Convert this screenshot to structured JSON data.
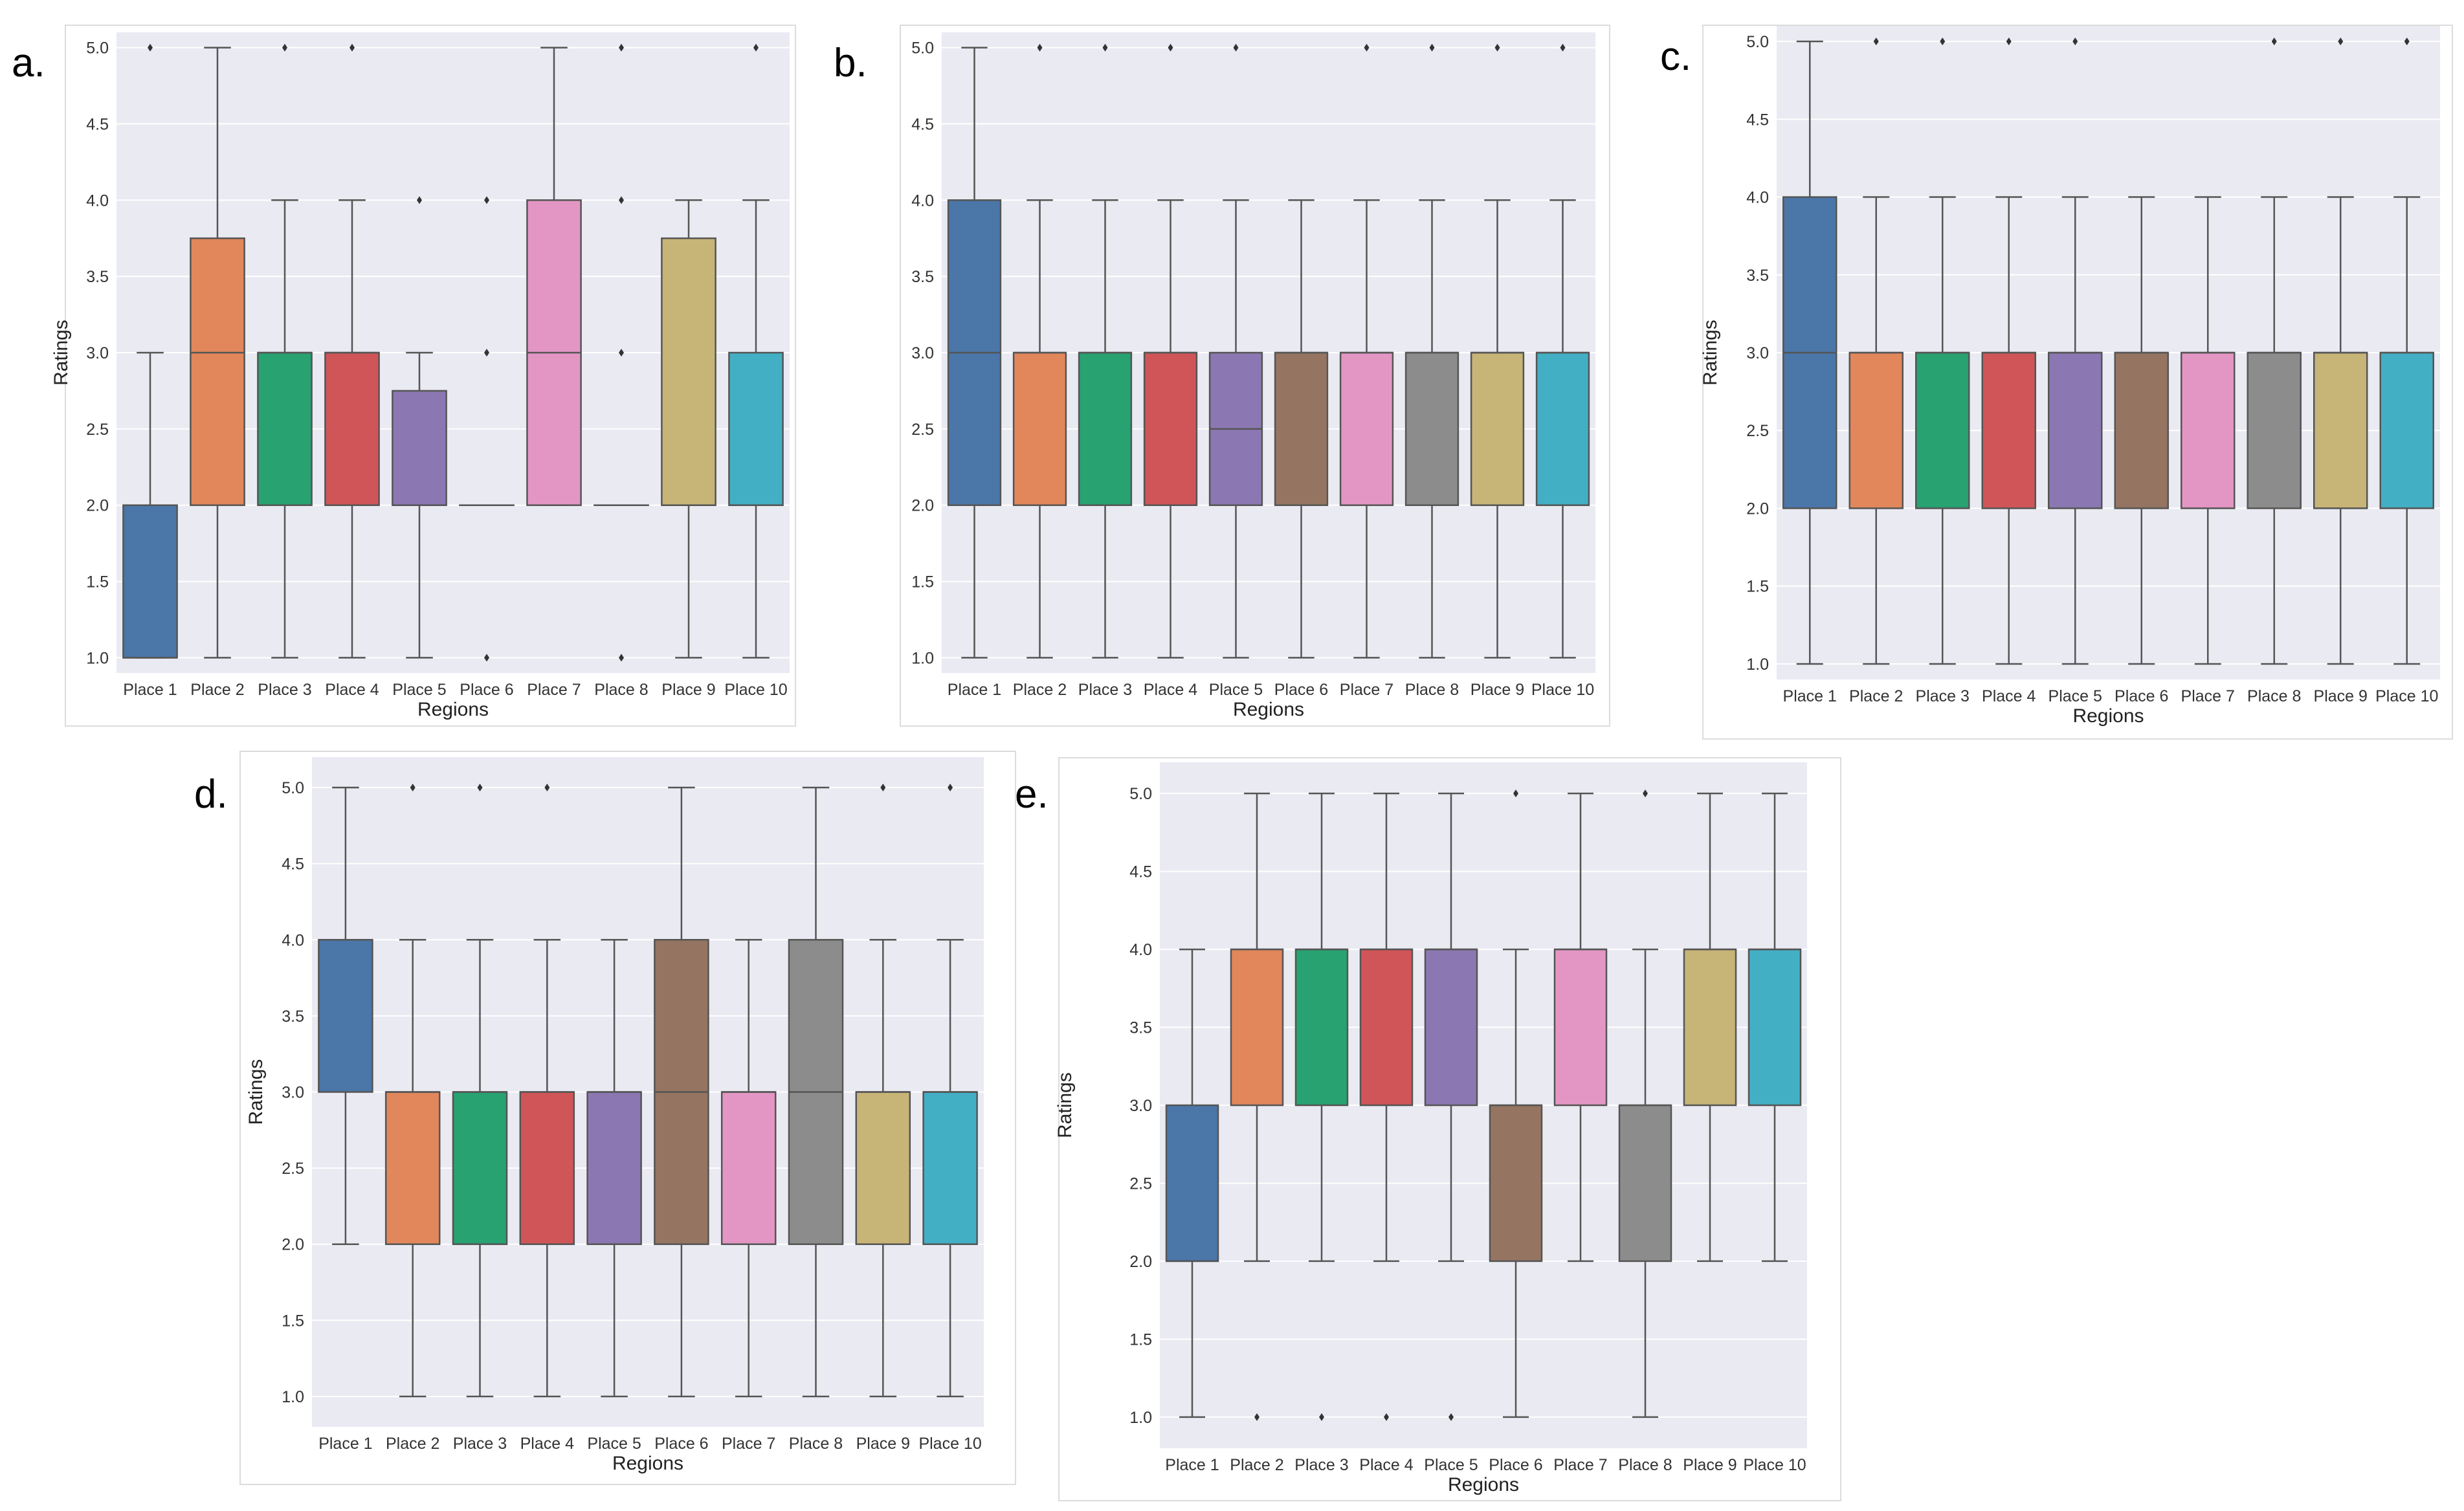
{
  "figure": {
    "colors": {
      "plot_background": "#eaeaf2",
      "gridline": "#ffffff",
      "whisker": "#555555",
      "box_edge": "#555555",
      "palette": [
        "#4a76a8",
        "#e1875b",
        "#27a270",
        "#d05558",
        "#8b78b2",
        "#957561",
        "#e396c4",
        "#8c8c8c",
        "#c7b477",
        "#43afc4"
      ]
    }
  },
  "chart_data": [
    {
      "panel": "a.",
      "type": "box",
      "xlabel": "Regions",
      "ylabel": "Ratings",
      "ylim": [
        0.9,
        5.1
      ],
      "yticks": [
        "1.0",
        "1.5",
        "2.0",
        "2.5",
        "3.0",
        "3.5",
        "4.0",
        "4.5",
        "5.0"
      ],
      "categories": [
        "Place 1",
        "Place 2",
        "Place 3",
        "Place 4",
        "Place 5",
        "Place 6",
        "Place 7",
        "Place 8",
        "Place 9",
        "Place 10"
      ],
      "boxes": [
        {
          "whislo": 1.0,
          "q1": 1.0,
          "med": 1.0,
          "q3": 2.0,
          "whishi": 3.0,
          "fliers": [
            5.0
          ]
        },
        {
          "whislo": 1.0,
          "q1": 2.0,
          "med": 3.0,
          "q3": 3.75,
          "whishi": 5.0,
          "fliers": []
        },
        {
          "whislo": 1.0,
          "q1": 2.0,
          "med": 3.0,
          "q3": 3.0,
          "whishi": 4.0,
          "fliers": [
            5.0
          ]
        },
        {
          "whislo": 1.0,
          "q1": 2.0,
          "med": 3.0,
          "q3": 3.0,
          "whishi": 4.0,
          "fliers": [
            5.0
          ]
        },
        {
          "whislo": 1.0,
          "q1": 2.0,
          "med": 2.0,
          "q3": 2.75,
          "whishi": 3.0,
          "fliers": [
            4.0
          ]
        },
        {
          "whislo": 2.0,
          "q1": 2.0,
          "med": 2.0,
          "q3": 2.0,
          "whishi": 2.0,
          "fliers": [
            1.0,
            3.0,
            4.0
          ]
        },
        {
          "whislo": 2.0,
          "q1": 2.0,
          "med": 3.0,
          "q3": 4.0,
          "whishi": 5.0,
          "fliers": []
        },
        {
          "whislo": 2.0,
          "q1": 2.0,
          "med": 2.0,
          "q3": 2.0,
          "whishi": 2.0,
          "fliers": [
            1.0,
            3.0,
            4.0,
            5.0
          ]
        },
        {
          "whislo": 1.0,
          "q1": 2.0,
          "med": 2.0,
          "q3": 3.75,
          "whishi": 4.0,
          "fliers": []
        },
        {
          "whislo": 1.0,
          "q1": 2.0,
          "med": 2.0,
          "q3": 3.0,
          "whishi": 4.0,
          "fliers": [
            5.0
          ]
        }
      ]
    },
    {
      "panel": "b.",
      "type": "box",
      "xlabel": "Regions",
      "ylabel": "",
      "ylim": [
        0.9,
        5.1
      ],
      "yticks": [
        "1.0",
        "1.5",
        "2.0",
        "2.5",
        "3.0",
        "3.5",
        "4.0",
        "4.5",
        "5.0"
      ],
      "categories": [
        "Place 1",
        "Place 2",
        "Place 3",
        "Place 4",
        "Place 5",
        "Place 6",
        "Place 7",
        "Place 8",
        "Place 9",
        "Place 10"
      ],
      "boxes": [
        {
          "whislo": 1.0,
          "q1": 2.0,
          "med": 3.0,
          "q3": 4.0,
          "whishi": 5.0,
          "fliers": []
        },
        {
          "whislo": 1.0,
          "q1": 2.0,
          "med": 3.0,
          "q3": 3.0,
          "whishi": 4.0,
          "fliers": [
            5.0
          ]
        },
        {
          "whislo": 1.0,
          "q1": 2.0,
          "med": 3.0,
          "q3": 3.0,
          "whishi": 4.0,
          "fliers": [
            5.0
          ]
        },
        {
          "whislo": 1.0,
          "q1": 2.0,
          "med": 3.0,
          "q3": 3.0,
          "whishi": 4.0,
          "fliers": [
            5.0
          ]
        },
        {
          "whislo": 1.0,
          "q1": 2.0,
          "med": 2.5,
          "q3": 3.0,
          "whishi": 4.0,
          "fliers": [
            5.0
          ]
        },
        {
          "whislo": 1.0,
          "q1": 2.0,
          "med": 3.0,
          "q3": 3.0,
          "whishi": 4.0,
          "fliers": []
        },
        {
          "whislo": 1.0,
          "q1": 2.0,
          "med": 3.0,
          "q3": 3.0,
          "whishi": 4.0,
          "fliers": [
            5.0
          ]
        },
        {
          "whislo": 1.0,
          "q1": 2.0,
          "med": 3.0,
          "q3": 3.0,
          "whishi": 4.0,
          "fliers": [
            5.0
          ]
        },
        {
          "whislo": 1.0,
          "q1": 2.0,
          "med": 3.0,
          "q3": 3.0,
          "whishi": 4.0,
          "fliers": [
            5.0
          ]
        },
        {
          "whislo": 1.0,
          "q1": 2.0,
          "med": 3.0,
          "q3": 3.0,
          "whishi": 4.0,
          "fliers": [
            5.0
          ]
        }
      ]
    },
    {
      "panel": "c.",
      "type": "box",
      "xlabel": "Regions",
      "ylabel": "Ratings",
      "ylim": [
        0.9,
        5.1
      ],
      "yticks": [
        "1.0",
        "1.5",
        "2.0",
        "2.5",
        "3.0",
        "3.5",
        "4.0",
        "4.5",
        "5.0"
      ],
      "categories": [
        "Place 1",
        "Place 2",
        "Place 3",
        "Place 4",
        "Place 5",
        "Place 6",
        "Place 7",
        "Place 8",
        "Place 9",
        "Place 10"
      ],
      "boxes": [
        {
          "whislo": 1.0,
          "q1": 2.0,
          "med": 3.0,
          "q3": 4.0,
          "whishi": 5.0,
          "fliers": []
        },
        {
          "whislo": 1.0,
          "q1": 2.0,
          "med": 3.0,
          "q3": 3.0,
          "whishi": 4.0,
          "fliers": [
            5.0
          ]
        },
        {
          "whislo": 1.0,
          "q1": 2.0,
          "med": 3.0,
          "q3": 3.0,
          "whishi": 4.0,
          "fliers": [
            5.0
          ]
        },
        {
          "whislo": 1.0,
          "q1": 2.0,
          "med": 3.0,
          "q3": 3.0,
          "whishi": 4.0,
          "fliers": [
            5.0
          ]
        },
        {
          "whislo": 1.0,
          "q1": 2.0,
          "med": 3.0,
          "q3": 3.0,
          "whishi": 4.0,
          "fliers": [
            5.0
          ]
        },
        {
          "whislo": 1.0,
          "q1": 2.0,
          "med": 3.0,
          "q3": 3.0,
          "whishi": 4.0,
          "fliers": []
        },
        {
          "whislo": 1.0,
          "q1": 2.0,
          "med": 3.0,
          "q3": 3.0,
          "whishi": 4.0,
          "fliers": []
        },
        {
          "whislo": 1.0,
          "q1": 2.0,
          "med": 3.0,
          "q3": 3.0,
          "whishi": 4.0,
          "fliers": [
            5.0
          ]
        },
        {
          "whislo": 1.0,
          "q1": 2.0,
          "med": 3.0,
          "q3": 3.0,
          "whishi": 4.0,
          "fliers": [
            5.0
          ]
        },
        {
          "whislo": 1.0,
          "q1": 2.0,
          "med": 3.0,
          "q3": 3.0,
          "whishi": 4.0,
          "fliers": [
            5.0
          ]
        }
      ]
    },
    {
      "panel": "d.",
      "type": "box",
      "xlabel": "Regions",
      "ylabel": "Ratings",
      "ylim": [
        0.8,
        5.2
      ],
      "yticks": [
        "1.0",
        "1.5",
        "2.0",
        "2.5",
        "3.0",
        "3.5",
        "4.0",
        "4.5",
        "5.0"
      ],
      "categories": [
        "Place 1",
        "Place 2",
        "Place 3",
        "Place 4",
        "Place 5",
        "Place 6",
        "Place 7",
        "Place 8",
        "Place 9",
        "Place 10"
      ],
      "boxes": [
        {
          "whislo": 2.0,
          "q1": 3.0,
          "med": 4.0,
          "q3": 4.0,
          "whishi": 5.0,
          "fliers": []
        },
        {
          "whislo": 1.0,
          "q1": 2.0,
          "med": 3.0,
          "q3": 3.0,
          "whishi": 4.0,
          "fliers": [
            5.0
          ]
        },
        {
          "whislo": 1.0,
          "q1": 2.0,
          "med": 3.0,
          "q3": 3.0,
          "whishi": 4.0,
          "fliers": [
            5.0
          ]
        },
        {
          "whislo": 1.0,
          "q1": 2.0,
          "med": 3.0,
          "q3": 3.0,
          "whishi": 4.0,
          "fliers": [
            5.0
          ]
        },
        {
          "whislo": 1.0,
          "q1": 2.0,
          "med": 3.0,
          "q3": 3.0,
          "whishi": 4.0,
          "fliers": []
        },
        {
          "whislo": 1.0,
          "q1": 2.0,
          "med": 3.0,
          "q3": 4.0,
          "whishi": 5.0,
          "fliers": []
        },
        {
          "whislo": 1.0,
          "q1": 2.0,
          "med": 3.0,
          "q3": 3.0,
          "whishi": 4.0,
          "fliers": []
        },
        {
          "whislo": 1.0,
          "q1": 2.0,
          "med": 3.0,
          "q3": 4.0,
          "whishi": 5.0,
          "fliers": []
        },
        {
          "whislo": 1.0,
          "q1": 2.0,
          "med": 3.0,
          "q3": 3.0,
          "whishi": 4.0,
          "fliers": [
            5.0
          ]
        },
        {
          "whislo": 1.0,
          "q1": 2.0,
          "med": 3.0,
          "q3": 3.0,
          "whishi": 4.0,
          "fliers": [
            5.0
          ]
        }
      ]
    },
    {
      "panel": "e.",
      "type": "box",
      "xlabel": "Regions",
      "ylabel": "Ratings",
      "ylim": [
        0.8,
        5.2
      ],
      "yticks": [
        "1.0",
        "1.5",
        "2.0",
        "2.5",
        "3.0",
        "3.5",
        "4.0",
        "4.5",
        "5.0"
      ],
      "categories": [
        "Place 1",
        "Place 2",
        "Place 3",
        "Place 4",
        "Place 5",
        "Place 6",
        "Place 7",
        "Place 8",
        "Place 9",
        "Place 10"
      ],
      "boxes": [
        {
          "whislo": 1.0,
          "q1": 2.0,
          "med": 2.0,
          "q3": 3.0,
          "whishi": 4.0,
          "fliers": []
        },
        {
          "whislo": 2.0,
          "q1": 3.0,
          "med": 4.0,
          "q3": 4.0,
          "whishi": 5.0,
          "fliers": [
            1.0
          ]
        },
        {
          "whislo": 2.0,
          "q1": 3.0,
          "med": 4.0,
          "q3": 4.0,
          "whishi": 5.0,
          "fliers": [
            1.0
          ]
        },
        {
          "whislo": 2.0,
          "q1": 3.0,
          "med": 4.0,
          "q3": 4.0,
          "whishi": 5.0,
          "fliers": [
            1.0
          ]
        },
        {
          "whislo": 2.0,
          "q1": 3.0,
          "med": 4.0,
          "q3": 4.0,
          "whishi": 5.0,
          "fliers": [
            1.0
          ]
        },
        {
          "whislo": 1.0,
          "q1": 2.0,
          "med": 3.0,
          "q3": 3.0,
          "whishi": 4.0,
          "fliers": [
            5.0
          ]
        },
        {
          "whislo": 2.0,
          "q1": 3.0,
          "med": 4.0,
          "q3": 4.0,
          "whishi": 5.0,
          "fliers": []
        },
        {
          "whislo": 1.0,
          "q1": 2.0,
          "med": 3.0,
          "q3": 3.0,
          "whishi": 4.0,
          "fliers": [
            5.0
          ]
        },
        {
          "whislo": 2.0,
          "q1": 3.0,
          "med": 4.0,
          "q3": 4.0,
          "whishi": 5.0,
          "fliers": []
        },
        {
          "whislo": 2.0,
          "q1": 3.0,
          "med": 4.0,
          "q3": 4.0,
          "whishi": 5.0,
          "fliers": []
        }
      ]
    }
  ]
}
